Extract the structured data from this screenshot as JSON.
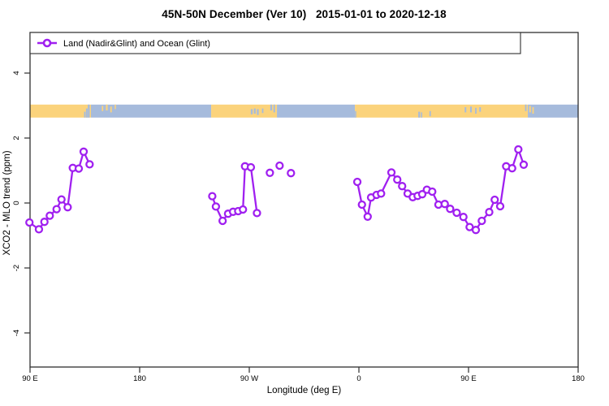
{
  "title": "45N-50N December (Ver 10)   2015-01-01 to 2020-12-18",
  "colors": {
    "series": "#A020F0",
    "land": "#FBD37C",
    "ocean": "#A6BBDC",
    "frame": "#2F2F2F",
    "text": "#000000"
  },
  "chart_data": {
    "type": "line",
    "title": "45N-50N December (Ver 10)   2015-01-01 to 2020-12-18",
    "xlabel": "Longitude (deg E)",
    "ylabel": "XCO2 - MLO trend (ppm)",
    "legend_label": "Land (Nadir&Glint) and Ocean (Glint)",
    "legend_position": "top-left",
    "grid": false,
    "xlim": [
      90,
      540
    ],
    "ylim": [
      -5.05,
      5.25
    ],
    "x_ticks": [
      {
        "v": 90,
        "label": "90 E"
      },
      {
        "v": 180,
        "label": "180"
      },
      {
        "v": 270,
        "label": "90 W"
      },
      {
        "v": 360,
        "label": "0"
      },
      {
        "v": 450,
        "label": "90 E"
      },
      {
        "v": 540,
        "label": "180"
      }
    ],
    "y_ticks": [
      {
        "v": -4,
        "label": "-4"
      },
      {
        "v": -2,
        "label": "-2"
      },
      {
        "v": 0,
        "label": "0"
      },
      {
        "v": 2,
        "label": "2"
      },
      {
        "v": 4,
        "label": "4"
      }
    ],
    "series": [
      {
        "name": "Land (Nadir&Glint) and Ocean (Glint)",
        "marker": "open-circle",
        "segments": [
          [
            [
              89.5,
              -0.6
            ],
            [
              97.3,
              -0.81
            ],
            [
              101.8,
              -0.58
            ],
            [
              106.2,
              -0.39
            ],
            [
              111.8,
              -0.19
            ],
            [
              115.8,
              0.11
            ],
            [
              120.9,
              -0.13
            ],
            [
              125.1,
              1.08
            ],
            [
              130.0,
              1.06
            ],
            [
              134.0,
              1.58
            ],
            [
              138.9,
              1.19
            ]
          ],
          [
            [
              239.6,
              0.21
            ],
            [
              242.6,
              -0.11
            ],
            [
              248.1,
              -0.55
            ],
            [
              252.6,
              -0.33
            ],
            [
              256.7,
              -0.27
            ],
            [
              260.9,
              -0.25
            ],
            [
              264.8,
              -0.2
            ],
            [
              266.5,
              1.13
            ],
            [
              271.3,
              1.1
            ],
            [
              276.3,
              -0.31
            ]
          ],
          [
            [
              286.9,
              0.93
            ]
          ],
          [
            [
              294.9,
              1.15
            ]
          ],
          [
            [
              304.2,
              0.92
            ]
          ],
          [
            [
              358.7,
              0.65
            ],
            [
              362.5,
              -0.05
            ],
            [
              367.2,
              -0.42
            ],
            [
              370.0,
              0.17
            ],
            [
              374.5,
              0.25
            ],
            [
              378.2,
              0.29
            ],
            [
              386.7,
              0.94
            ],
            [
              391.5,
              0.72
            ],
            [
              395.5,
              0.52
            ],
            [
              400.0,
              0.29
            ],
            [
              404.2,
              0.18
            ],
            [
              408.2,
              0.22
            ],
            [
              412.0,
              0.27
            ],
            [
              415.8,
              0.41
            ],
            [
              420.2,
              0.35
            ],
            [
              425.3,
              -0.05
            ],
            [
              430.5,
              -0.03
            ],
            [
              434.9,
              -0.18
            ],
            [
              440.3,
              -0.3
            ],
            [
              445.8,
              -0.43
            ],
            [
              450.9,
              -0.74
            ],
            [
              456.0,
              -0.83
            ],
            [
              460.9,
              -0.55
            ],
            [
              467.0,
              -0.28
            ],
            [
              471.5,
              0.1
            ],
            [
              476.0,
              -0.1
            ],
            [
              480.9,
              1.13
            ],
            [
              485.8,
              1.07
            ],
            [
              490.9,
              1.65
            ],
            [
              495.3,
              1.18
            ]
          ]
        ]
      }
    ],
    "map_band": {
      "description": "45N-50N latitude strip world map drawn across the plot",
      "center_value": 2.83,
      "segments": [
        {
          "t": "land",
          "a": 90,
          "b": 140
        },
        {
          "t": "ocean",
          "a": 140,
          "b": 238.7
        },
        {
          "t": "land",
          "a": 238.7,
          "b": 292.7
        },
        {
          "t": "ocean",
          "a": 292.7,
          "b": 356.7
        },
        {
          "t": "land",
          "a": 356.7,
          "b": 498.7
        },
        {
          "t": "ocean",
          "a": 498.7,
          "b": 540
        }
      ],
      "speckles": [
        {
          "t": "ocean",
          "lon": 135.0,
          "w": 1.2,
          "f0": 0.55,
          "f1": 1
        },
        {
          "t": "ocean",
          "lon": 136.6,
          "w": 1.3,
          "f0": 0.3,
          "f1": 1
        },
        {
          "t": "ocean",
          "lon": 138.2,
          "w": 1.6,
          "f0": 0.0,
          "f1": 1
        },
        {
          "t": "land",
          "lon": 149.5,
          "w": 1.2,
          "f0": 0.1,
          "f1": 0.5
        },
        {
          "t": "land",
          "lon": 153.0,
          "w": 1.4,
          "f0": 0.0,
          "f1": 0.45
        },
        {
          "t": "land",
          "lon": 156.5,
          "w": 1.2,
          "f0": 0.15,
          "f1": 0.6
        },
        {
          "t": "land",
          "lon": 160.0,
          "w": 1.0,
          "f0": 0.0,
          "f1": 0.35
        },
        {
          "t": "ocean",
          "lon": 272.0,
          "w": 1.5,
          "f0": 0.35,
          "f1": 0.75
        },
        {
          "t": "ocean",
          "lon": 274.5,
          "w": 1.5,
          "f0": 0.3,
          "f1": 0.7
        },
        {
          "t": "ocean",
          "lon": 277.0,
          "w": 1.5,
          "f0": 0.35,
          "f1": 0.8
        },
        {
          "t": "ocean",
          "lon": 281.0,
          "w": 1.2,
          "f0": 0.3,
          "f1": 0.65
        },
        {
          "t": "ocean",
          "lon": 288.0,
          "w": 1.5,
          "f0": 0.0,
          "f1": 0.45
        },
        {
          "t": "ocean",
          "lon": 290.5,
          "w": 1.3,
          "f0": 0.0,
          "f1": 0.6
        },
        {
          "t": "ocean",
          "lon": 357.3,
          "w": 1.0,
          "f0": 0.5,
          "f1": 1
        },
        {
          "t": "ocean",
          "lon": 409.5,
          "w": 1.5,
          "f0": 0.55,
          "f1": 1
        },
        {
          "t": "ocean",
          "lon": 411.5,
          "w": 1.0,
          "f0": 0.6,
          "f1": 1
        },
        {
          "t": "ocean",
          "lon": 418.5,
          "w": 1.2,
          "f0": 0.5,
          "f1": 0.9
        },
        {
          "t": "ocean",
          "lon": 447.5,
          "w": 1.3,
          "f0": 0.2,
          "f1": 0.6
        },
        {
          "t": "ocean",
          "lon": 452.0,
          "w": 1.4,
          "f0": 0.15,
          "f1": 0.6
        },
        {
          "t": "ocean",
          "lon": 456.0,
          "w": 1.2,
          "f0": 0.25,
          "f1": 0.7
        },
        {
          "t": "ocean",
          "lon": 459.5,
          "w": 1.3,
          "f0": 0.2,
          "f1": 0.55
        },
        {
          "t": "ocean",
          "lon": 497.0,
          "w": 1.2,
          "f0": 0.0,
          "f1": 0.5
        },
        {
          "t": "land",
          "lon": 500.5,
          "w": 1.3,
          "f0": 0.1,
          "f1": 0.6
        },
        {
          "t": "land",
          "lon": 503.0,
          "w": 1.2,
          "f0": 0.2,
          "f1": 0.7
        }
      ]
    }
  }
}
